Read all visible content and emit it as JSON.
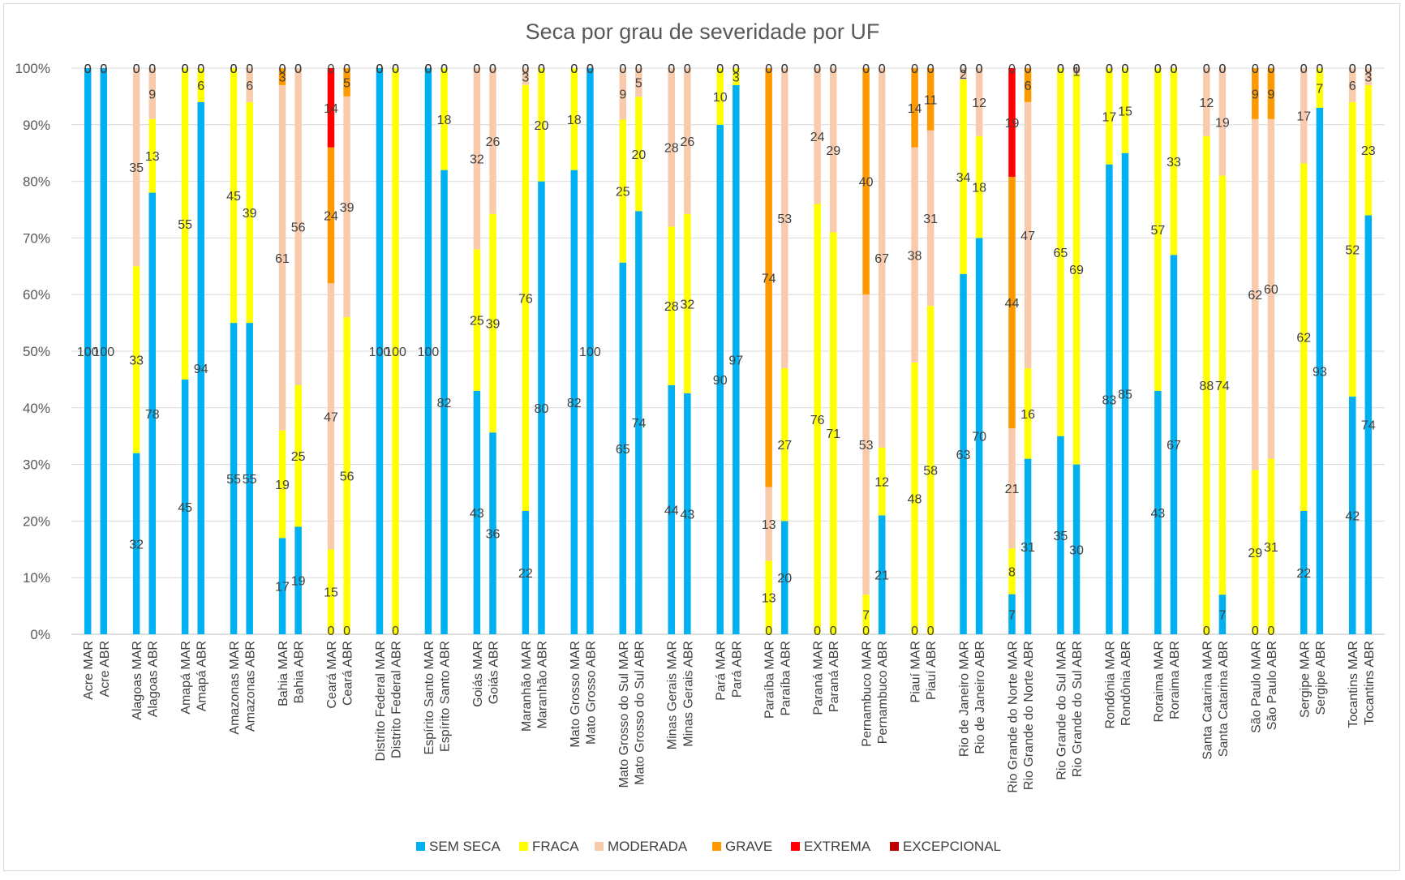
{
  "chart_data": {
    "type": "bar",
    "stacked": true,
    "percent_stacked": true,
    "title": "Seca por grau de severidade por UF",
    "xlabel": "",
    "ylabel": "",
    "ylim": [
      0,
      100
    ],
    "y_ticks": [
      "0%",
      "10%",
      "20%",
      "30%",
      "40%",
      "50%",
      "60%",
      "70%",
      "80%",
      "90%",
      "100%"
    ],
    "gridlines": true,
    "legend_position": "bottom",
    "groups": [
      "Acre",
      "Alagoas",
      "Amapá",
      "Amazonas",
      "Bahia",
      "Ceará",
      "Distrito Federal",
      "Espírito Santo",
      "Goiás",
      "Maranhão",
      "Mato Grosso",
      "Mato Grosso do Sul",
      "Minas Gerais",
      "Pará",
      "Paraíba",
      "Paraná",
      "Pernambuco",
      "Piauí",
      "Rio de Janeiro",
      "Rio Grande do Norte",
      "Rio Grande do Sul",
      "Rondônia",
      "Roraima",
      "Santa Catarina",
      "São Paulo",
      "Sergipe",
      "Tocantins"
    ],
    "categories": [
      "Acre MAR",
      "Acre ABR",
      "Alagoas MAR",
      "Alagoas ABR",
      "Amapá MAR",
      "Amapá ABR",
      "Amazonas MAR",
      "Amazonas ABR",
      "Bahia MAR",
      "Bahia ABR",
      "Ceará MAR",
      "Ceará ABR",
      "Distrito Federal MAR",
      "Distrito Federal ABR",
      "Espírito Santo MAR",
      "Espírito Santo ABR",
      "Goiás MAR",
      "Goiás ABR",
      "Maranhão MAR",
      "Maranhão ABR",
      "Mato Grosso MAR",
      "Mato Grosso ABR",
      "Mato Grosso do Sul MAR",
      "Mato Grosso do Sul ABR",
      "Minas Gerais MAR",
      "Minas Gerais ABR",
      "Pará MAR",
      "Pará ABR",
      "Paraíba MAR",
      "Paraíba ABR",
      "Paraná MAR",
      "Paraná ABR",
      "Pernambuco MAR",
      "Pernambuco ABR",
      "Piauí MAR",
      "Piauí ABR",
      "Rio de Janeiro MAR",
      "Rio de Janeiro ABR",
      "Rio Grande do Norte MAR",
      "Rio Grande do Norte ABR",
      "Rio Grande do Sul MAR",
      "Rio Grande do Sul ABR",
      "Rondônia MAR",
      "Rondônia ABR",
      "Roraima MAR",
      "Roraima ABR",
      "Santa Catarina MAR",
      "Santa Catarina ABR",
      "São Paulo MAR",
      "São Paulo ABR",
      "Sergipe MAR",
      "Sergipe ABR",
      "Tocantins MAR",
      "Tocantins ABR"
    ],
    "series": [
      {
        "name": "SEM SECA",
        "color": "#00B0F0",
        "values": [
          100,
          100,
          32,
          78,
          45,
          94,
          55,
          55,
          17,
          19,
          0,
          0,
          100,
          0,
          100,
          82,
          43,
          36,
          22,
          80,
          82,
          100,
          65,
          74,
          44,
          43,
          90,
          97,
          0,
          20,
          0,
          0,
          0,
          21,
          0,
          0,
          63,
          70,
          7,
          31,
          35,
          30,
          83,
          85,
          43,
          67,
          0,
          7,
          0,
          0,
          22,
          93,
          42,
          74
        ]
      },
      {
        "name": "FRACA",
        "color": "#FFFF00",
        "values": [
          0,
          0,
          33,
          13,
          55,
          6,
          45,
          39,
          19,
          25,
          15,
          56,
          0,
          100,
          0,
          18,
          25,
          39,
          76,
          20,
          18,
          0,
          25,
          20,
          28,
          32,
          10,
          3,
          13,
          27,
          76,
          71,
          7,
          12,
          48,
          58,
          34,
          18,
          8,
          16,
          65,
          69,
          17,
          15,
          57,
          33,
          88,
          74,
          29,
          31,
          62,
          7,
          52,
          23
        ]
      },
      {
        "name": "MODERADA",
        "color": "#F8CBAD",
        "values": [
          0,
          0,
          35,
          9,
          0,
          0,
          0,
          6,
          61,
          56,
          47,
          39,
          0,
          0,
          0,
          0,
          32,
          26,
          3,
          0,
          0,
          0,
          9,
          5,
          28,
          26,
          0,
          0,
          13,
          53,
          24,
          29,
          53,
          67,
          38,
          31,
          2,
          12,
          21,
          47,
          0,
          1,
          0,
          0,
          0,
          0,
          12,
          19,
          62,
          60,
          17,
          0,
          6,
          3
        ]
      },
      {
        "name": "GRAVE",
        "color": "#FF9900",
        "values": [
          0,
          0,
          0,
          0,
          0,
          0,
          0,
          0,
          3,
          0,
          24,
          5,
          0,
          0,
          0,
          0,
          0,
          0,
          0,
          0,
          0,
          0,
          0,
          0,
          0,
          0,
          0,
          0,
          74,
          0,
          0,
          0,
          40,
          0,
          14,
          11,
          0,
          0,
          44,
          6,
          0,
          0,
          0,
          0,
          0,
          0,
          0,
          0,
          9,
          9,
          0,
          0,
          0,
          0
        ]
      },
      {
        "name": "EXTREMA",
        "color": "#FF0000",
        "values": [
          0,
          0,
          0,
          0,
          0,
          0,
          0,
          0,
          0,
          0,
          14,
          0,
          0,
          0,
          0,
          0,
          0,
          0,
          0,
          0,
          0,
          0,
          0,
          0,
          0,
          0,
          0,
          0,
          0,
          0,
          0,
          0,
          0,
          0,
          0,
          0,
          0,
          0,
          19,
          0,
          0,
          0,
          0,
          0,
          0,
          0,
          0,
          0,
          0,
          0,
          0,
          0,
          0,
          0
        ]
      },
      {
        "name": "EXCEPCIONAL",
        "color": "#C00000",
        "values": [
          0,
          0,
          0,
          0,
          0,
          0,
          0,
          0,
          0,
          0,
          0,
          0,
          0,
          0,
          0,
          0,
          0,
          0,
          0,
          0,
          0,
          0,
          0,
          0,
          0,
          0,
          0,
          0,
          0,
          0,
          0,
          0,
          0,
          0,
          0,
          0,
          0,
          0,
          0,
          0,
          0,
          0,
          0,
          0,
          0,
          0,
          0,
          0,
          0,
          0,
          0,
          0,
          0,
          0
        ]
      }
    ]
  }
}
